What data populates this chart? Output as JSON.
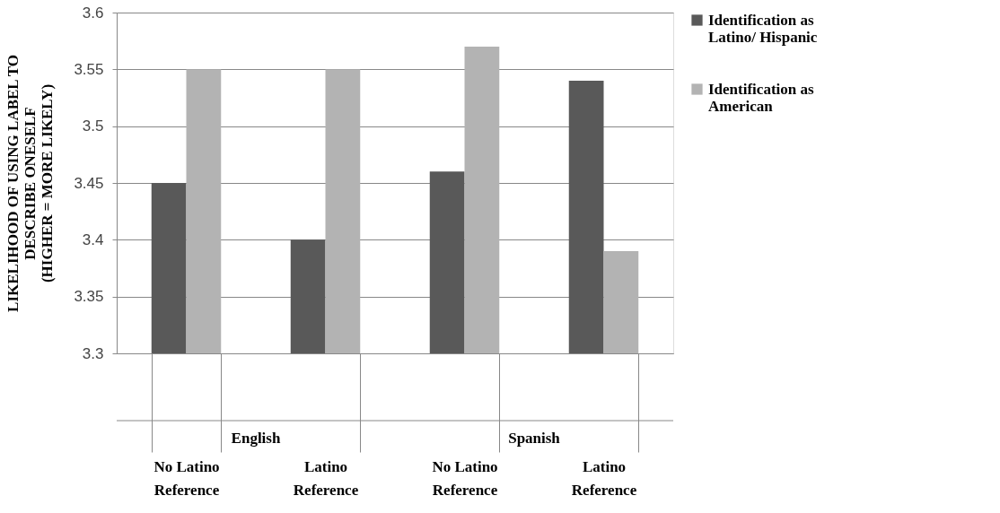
{
  "chart_data": {
    "type": "bar",
    "ylabel": "LIKELIHOOD OF USING LABEL TO\nDESCRIBE ONESELF\n(HIGHER = MORE LIKELY)",
    "categories": [
      "No Latino Reference",
      "Latino Reference",
      "No Latino Reference",
      "Latino Reference"
    ],
    "series": [
      {
        "name": "Identification as Latino/ Hispanic",
        "color": "#595959",
        "values": [
          3.45,
          3.4,
          3.46,
          3.54
        ]
      },
      {
        "name": "Identification as American",
        "color": "#b3b3b3",
        "values": [
          3.55,
          3.55,
          3.57,
          3.39
        ]
      }
    ],
    "annotations": [
      "English",
      "Spanish"
    ],
    "ylim": [
      3.3,
      3.6
    ],
    "yticks": [
      3.3,
      3.35,
      3.4,
      3.45,
      3.5,
      3.55,
      3.6
    ],
    "grid": "y",
    "legend": "right"
  }
}
